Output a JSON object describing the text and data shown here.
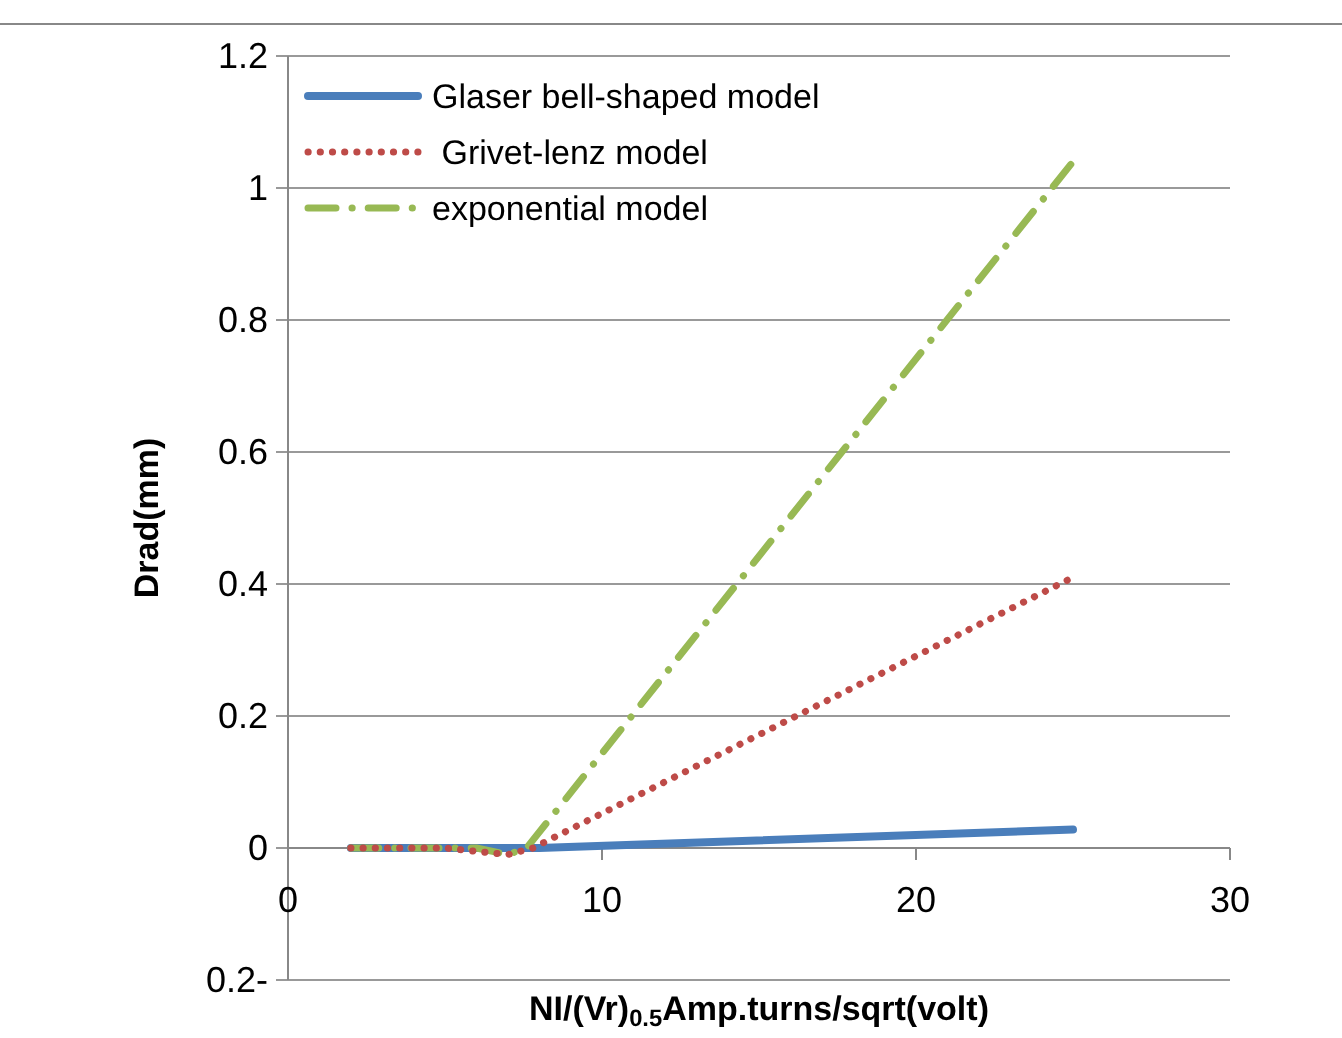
{
  "chart_data": {
    "type": "line",
    "xlabel": "NI/(Vr)$_{0.5}$Amp.turns/sqrt(volt)",
    "ylabel": "Drad(mm)",
    "xlim": [
      0,
      30
    ],
    "xticks": [
      0,
      10,
      20,
      30
    ],
    "ylim": [
      -0.2,
      1.2
    ],
    "yticks": [
      {
        "value": -0.2,
        "label": "0.2-"
      },
      0,
      0.2,
      0.4,
      0.6,
      0.8,
      1,
      1.2
    ],
    "grid": "y",
    "legend": "top left",
    "series": [
      {
        "name": "Glaser bell-shaped model",
        "color": "#4a7ebb",
        "line_style": "solid",
        "x": [
          2,
          5,
          8,
          25
        ],
        "values": [
          0,
          0,
          0,
          0.028
        ]
      },
      {
        "name": " Grivet-lenz model",
        "color": "#be4b48",
        "line_style": "dotted",
        "x": [
          2,
          5,
          7,
          7.8,
          25
        ],
        "values": [
          0,
          0,
          -0.01,
          0,
          0.41
        ]
      },
      {
        "name": "exponential model",
        "color": "#98b954",
        "line_style": "dashdot",
        "x": [
          2,
          6,
          7,
          7.6,
          25
        ],
        "values": [
          0,
          0,
          -0.01,
          0,
          1.04
        ]
      }
    ]
  }
}
